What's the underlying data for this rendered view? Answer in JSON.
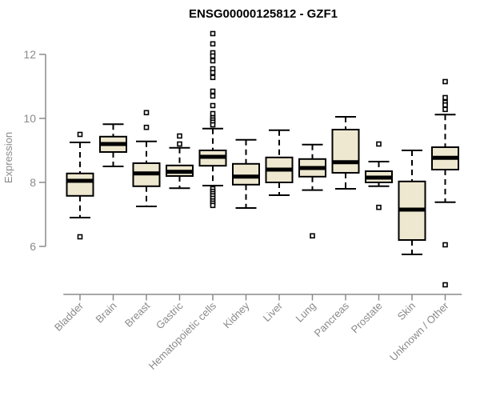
{
  "colors": {
    "box_fill": "#EEE8D0",
    "box_stroke": "#000000",
    "median": "#000000",
    "whisker": "#000000",
    "outlier_fill": "#ffffff",
    "outlier_stroke": "#000000",
    "axis": "#8A8A8A",
    "axis_label": "#8A8A8A",
    "title": "#000000",
    "background": "#ffffff"
  },
  "chart_data": {
    "type": "boxplot",
    "title": "ENSG00000125812 - GZF1",
    "ylabel": "Expression",
    "xlabel": "",
    "yticks": [
      6,
      8,
      10,
      12
    ],
    "ylim": [
      6,
      12
    ],
    "grid": false,
    "legend": false,
    "categories": [
      "Bladder",
      "Brain",
      "Breast",
      "Gastric",
      "Hematopoietic cells",
      "Kidney",
      "Liver",
      "Lung",
      "Pancreas",
      "Prostate",
      "Skin",
      "Unknown / Other"
    ],
    "series": [
      {
        "category": "Bladder",
        "whisker_low": 6.9,
        "q1": 7.58,
        "median": 8.05,
        "q3": 8.28,
        "whisker_high": 9.25,
        "outliers": [
          9.5,
          6.3
        ]
      },
      {
        "category": "Brain",
        "whisker_low": 8.5,
        "q1": 8.95,
        "median": 9.2,
        "q3": 9.43,
        "whisker_high": 9.82,
        "outliers": []
      },
      {
        "category": "Breast",
        "whisker_low": 7.25,
        "q1": 7.88,
        "median": 8.28,
        "q3": 8.6,
        "whisker_high": 9.28,
        "outliers": [
          10.18,
          9.72
        ]
      },
      {
        "category": "Gastric",
        "whisker_low": 7.82,
        "q1": 8.2,
        "median": 8.33,
        "q3": 8.53,
        "whisker_high": 9.08,
        "outliers": [
          9.45,
          9.2
        ]
      },
      {
        "category": "Hematopoietic cells",
        "whisker_low": 7.9,
        "q1": 8.52,
        "median": 8.8,
        "q3": 9.0,
        "whisker_high": 9.68,
        "outliers": [
          12.65,
          12.33,
          12.05,
          11.95,
          11.8,
          11.55,
          11.43,
          11.28,
          10.85,
          10.7,
          10.4,
          10.15,
          10.02,
          9.95,
          9.88,
          9.8,
          7.8,
          7.72,
          7.65,
          7.58,
          7.5,
          7.42,
          7.35,
          7.28
        ]
      },
      {
        "category": "Kidney",
        "whisker_low": 7.2,
        "q1": 7.93,
        "median": 8.18,
        "q3": 8.58,
        "whisker_high": 9.33,
        "outliers": []
      },
      {
        "category": "Liver",
        "whisker_low": 7.6,
        "q1": 8.0,
        "median": 8.4,
        "q3": 8.78,
        "whisker_high": 9.63,
        "outliers": []
      },
      {
        "category": "Lung",
        "whisker_low": 7.76,
        "q1": 8.18,
        "median": 8.45,
        "q3": 8.73,
        "whisker_high": 9.18,
        "outliers": [
          6.33
        ]
      },
      {
        "category": "Pancreas",
        "whisker_low": 7.8,
        "q1": 8.3,
        "median": 8.63,
        "q3": 9.65,
        "whisker_high": 10.05,
        "outliers": []
      },
      {
        "category": "Prostate",
        "whisker_low": 7.88,
        "q1": 8.0,
        "median": 8.15,
        "q3": 8.35,
        "whisker_high": 8.65,
        "outliers": [
          9.2,
          7.22
        ]
      },
      {
        "category": "Skin",
        "whisker_low": 5.75,
        "q1": 6.2,
        "median": 7.15,
        "q3": 8.03,
        "whisker_high": 9.0,
        "outliers": []
      },
      {
        "category": "Unknown / Other",
        "whisker_low": 7.38,
        "q1": 8.4,
        "median": 8.77,
        "q3": 9.1,
        "whisker_high": 10.12,
        "outliers": [
          11.15,
          10.65,
          10.5,
          10.42,
          10.28,
          6.05,
          4.8
        ]
      }
    ]
  }
}
